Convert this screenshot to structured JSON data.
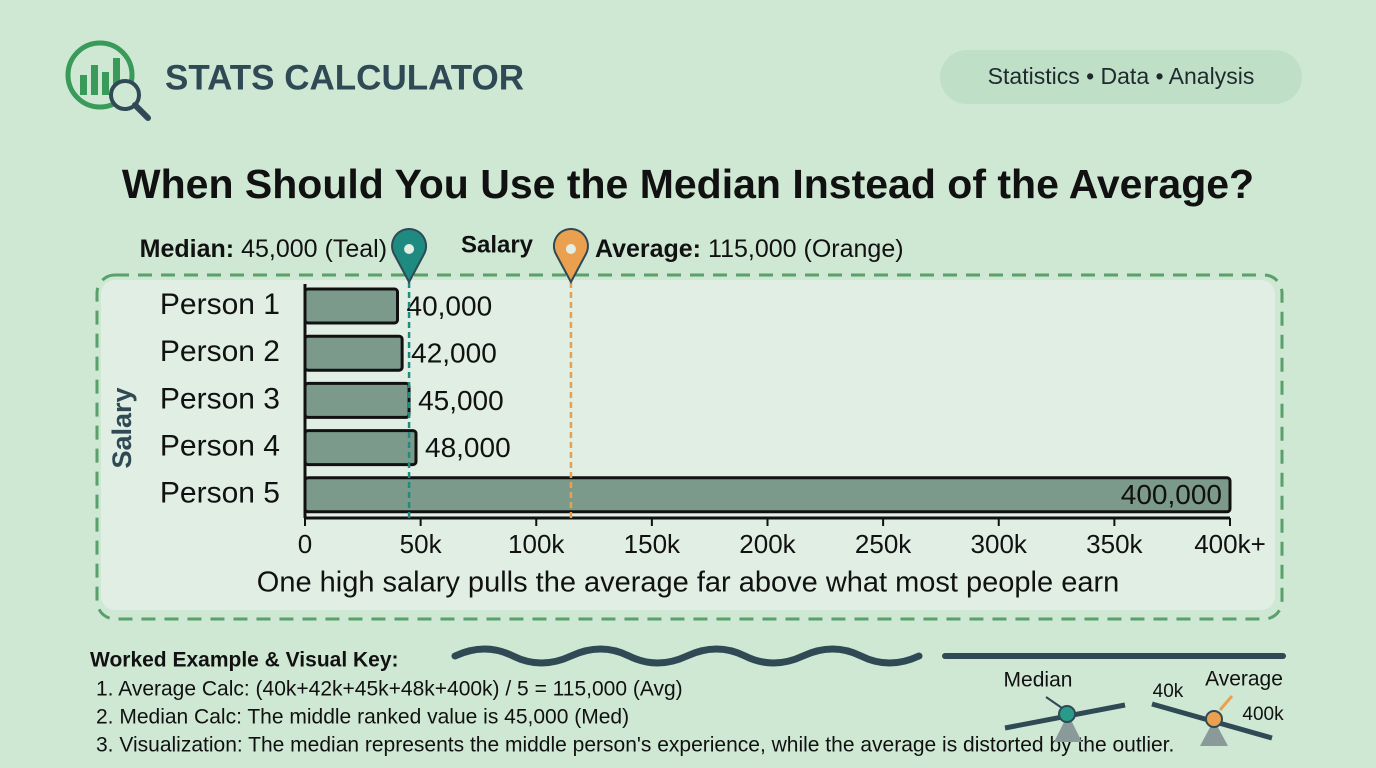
{
  "header": {
    "brand": "STATS CALCULATOR",
    "tags": "Statistics • Data • Analysis"
  },
  "chart_data": {
    "type": "bar",
    "orientation": "horizontal",
    "title": "When Should You Use the Median Instead of the Average?",
    "x_label": "Salary",
    "y_label": "Salary",
    "categories": [
      "Person 1",
      "Person 2",
      "Person 3",
      "Person 4",
      "Person 5"
    ],
    "values": [
      40000,
      42000,
      45000,
      48000,
      400000
    ],
    "value_labels": [
      "40,000",
      "42,000",
      "45,000",
      "48,000",
      "400,000"
    ],
    "color": "#7c9a8b",
    "xlim": [
      0,
      400000
    ],
    "xticks": [
      0,
      {
        "value": 50000,
        "label": "50k"
      },
      {
        "value": 100000,
        "label": "100k"
      },
      {
        "value": 150000,
        "label": "150k"
      },
      {
        "value": 200000,
        "label": "200k"
      },
      {
        "value": 250000,
        "label": "250k"
      },
      {
        "value": 300000,
        "label": "300k"
      },
      {
        "value": 350000,
        "label": "350k"
      },
      {
        "value": 400000,
        "label": "400k+"
      }
    ],
    "reference_lines": [
      {
        "name": "Median:",
        "value": 45000,
        "value_label": "45,000",
        "note": "(Teal)",
        "color": "#1f8a80"
      },
      {
        "name": "Average:",
        "value": 115000,
        "value_label": "115,000",
        "note": "(Orange)",
        "color": "#eaa04e"
      }
    ],
    "caption": "One high salary pulls the average far above what most people earn"
  },
  "footer": {
    "heading": "Worked Example & Visual Key:",
    "items": [
      "1. Average Calc: (40k+42k+45k+48k+400k) / 5 = 115,000 (Avg)",
      "2. Median Calc: The middle ranked value is 45,000 (Med)",
      "3. Visualization: The median represents the middle person's experience, while the average is distorted by the outlier."
    ],
    "key": {
      "median": "Median",
      "average": "Average",
      "low": "40k",
      "high": "400k"
    }
  }
}
